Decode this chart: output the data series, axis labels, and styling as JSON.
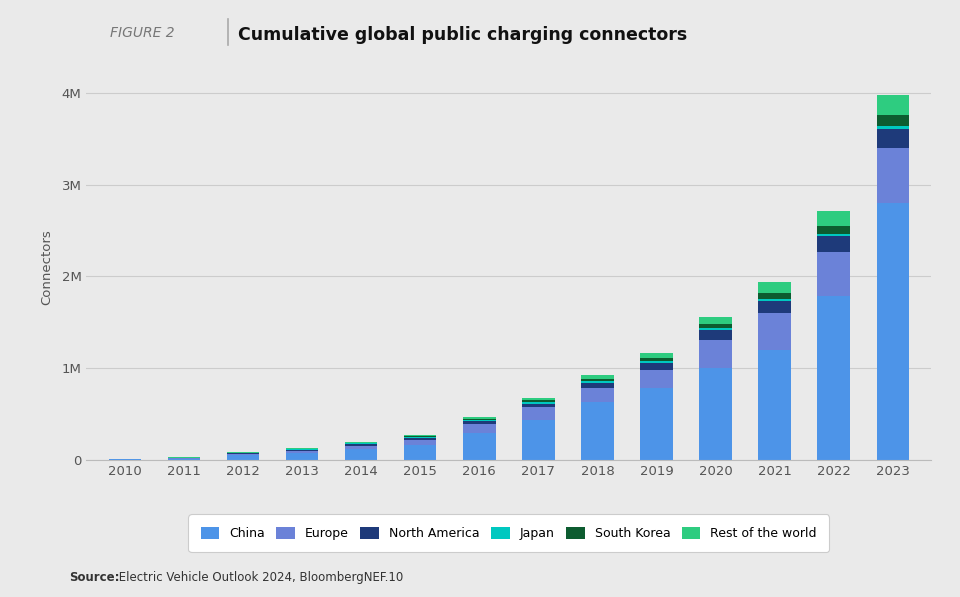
{
  "years": [
    2010,
    2011,
    2012,
    2013,
    2014,
    2015,
    2016,
    2017,
    2018,
    2019,
    2020,
    2021,
    2022,
    2023
  ],
  "china": [
    5000,
    10000,
    50000,
    75000,
    115000,
    160000,
    295000,
    430000,
    630000,
    780000,
    1000000,
    1200000,
    1780000,
    2800000
  ],
  "europe": [
    2000,
    5000,
    12000,
    20000,
    35000,
    55000,
    90000,
    140000,
    155000,
    200000,
    310000,
    400000,
    490000,
    600000
  ],
  "north_america": [
    1500,
    4000,
    8000,
    12000,
    18000,
    24000,
    32000,
    42000,
    55000,
    72000,
    100000,
    130000,
    165000,
    210000
  ],
  "japan": [
    1000,
    3000,
    5000,
    7000,
    10000,
    13000,
    16000,
    18000,
    20000,
    22000,
    24000,
    26000,
    28000,
    30000
  ],
  "south_korea": [
    500,
    1000,
    2000,
    3000,
    5000,
    7000,
    11000,
    16000,
    22000,
    32000,
    46000,
    64000,
    88000,
    115000
  ],
  "rest_of_world": [
    1000,
    2000,
    4000,
    6000,
    8000,
    14000,
    22000,
    30000,
    45000,
    58000,
    80000,
    115000,
    165000,
    225000
  ],
  "colors": {
    "china": "#4D94E8",
    "europe": "#6B82D8",
    "north_america": "#1E3A7A",
    "japan": "#00C8C0",
    "south_korea": "#0D5C30",
    "rest_of_world": "#2ECC80"
  },
  "labels": {
    "china": "China",
    "europe": "Europe",
    "north_america": "North America",
    "japan": "Japan",
    "south_korea": "South Korea",
    "rest_of_world": "Rest of the world"
  },
  "title": "Cumulative global public charging connectors",
  "figure_label": "FIGURE 2",
  "ylabel": "Connectors",
  "ylim": [
    0,
    4200000
  ],
  "yticks": [
    0,
    1000000,
    2000000,
    3000000,
    4000000
  ],
  "ytick_labels": [
    "0",
    "1M",
    "2M",
    "3M",
    "4M"
  ],
  "background_color": "#EAEAEA",
  "plot_background": "#EAEAEA",
  "source_text_bold": "Source:",
  "source_text_regular": " Electric Vehicle Outlook 2024, BloombergNEF.",
  "source_superscript": "10",
  "bar_width": 0.55
}
